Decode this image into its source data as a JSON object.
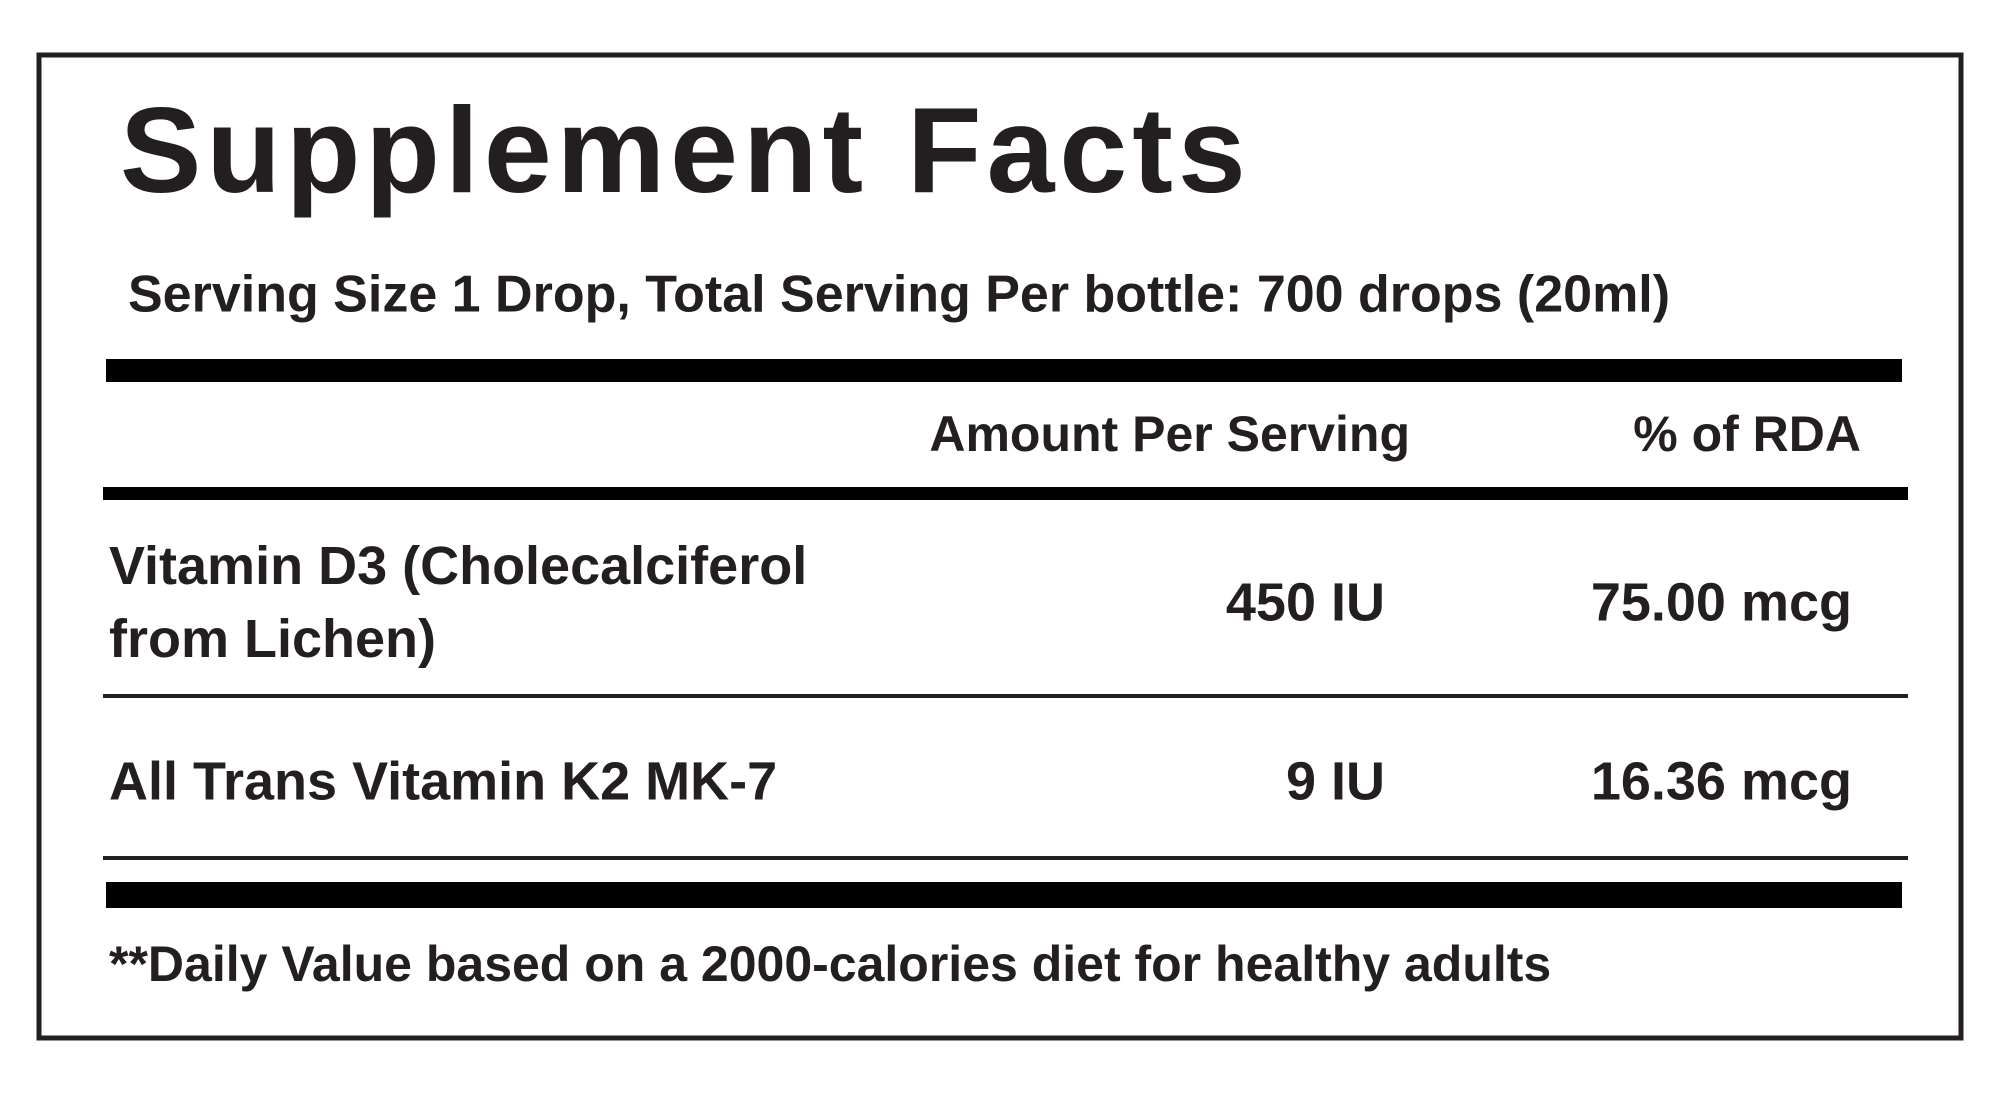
{
  "header": {
    "title": "Supplement Facts",
    "serving": "Serving Size 1 Drop, Total Serving Per bottle: 700 drops (20ml)"
  },
  "table": {
    "columns": [
      "Amount Per Serving",
      "% of RDA"
    ],
    "rows": [
      {
        "name": [
          "Vitamin D3 (Cholecalciferol",
          "from Lichen)"
        ],
        "amount": "450 IU",
        "rda": "75.00 mcg"
      },
      {
        "name": [
          "All Trans Vitamin K2 MK-7"
        ],
        "amount": "9 IU",
        "rda": "16.36 mcg"
      }
    ]
  },
  "footnote": "**Daily Value based on a 2000-calories diet for healthy adults"
}
